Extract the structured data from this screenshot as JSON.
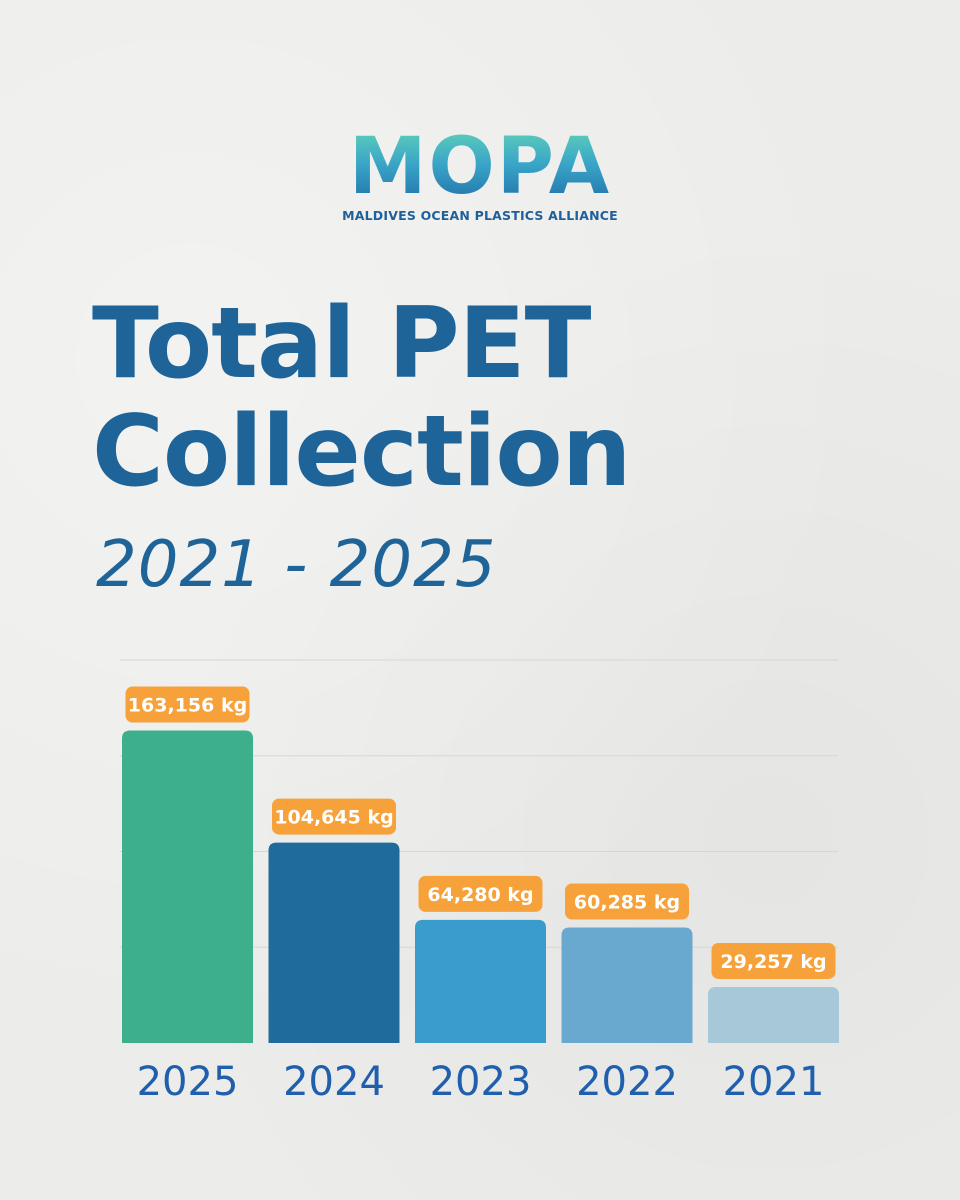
{
  "logo": {
    "word": "MOPA",
    "tagline": "MALDIVES OCEAN PLASTICS ALLIANCE"
  },
  "title_line1": "Total PET",
  "title_line2": "Collection",
  "subtitle": "2021 - 2025",
  "chart_data": {
    "type": "bar",
    "categories": [
      "2025",
      "2024",
      "2023",
      "2022",
      "2021"
    ],
    "values": [
      163156,
      104645,
      64280,
      60285,
      29257
    ],
    "data_labels": [
      "163,156 kg",
      "104,645 kg",
      "64,280 kg",
      "60,285 kg",
      "29,257 kg"
    ],
    "unit": "kg",
    "ylim": [
      0,
      200000
    ],
    "grid": true,
    "bar_colors": [
      "#3daf8c",
      "#1f6c9c",
      "#3a9ccc",
      "#6aa9cf",
      "#a6c8d9"
    ],
    "label_color": "#f6a13a"
  }
}
